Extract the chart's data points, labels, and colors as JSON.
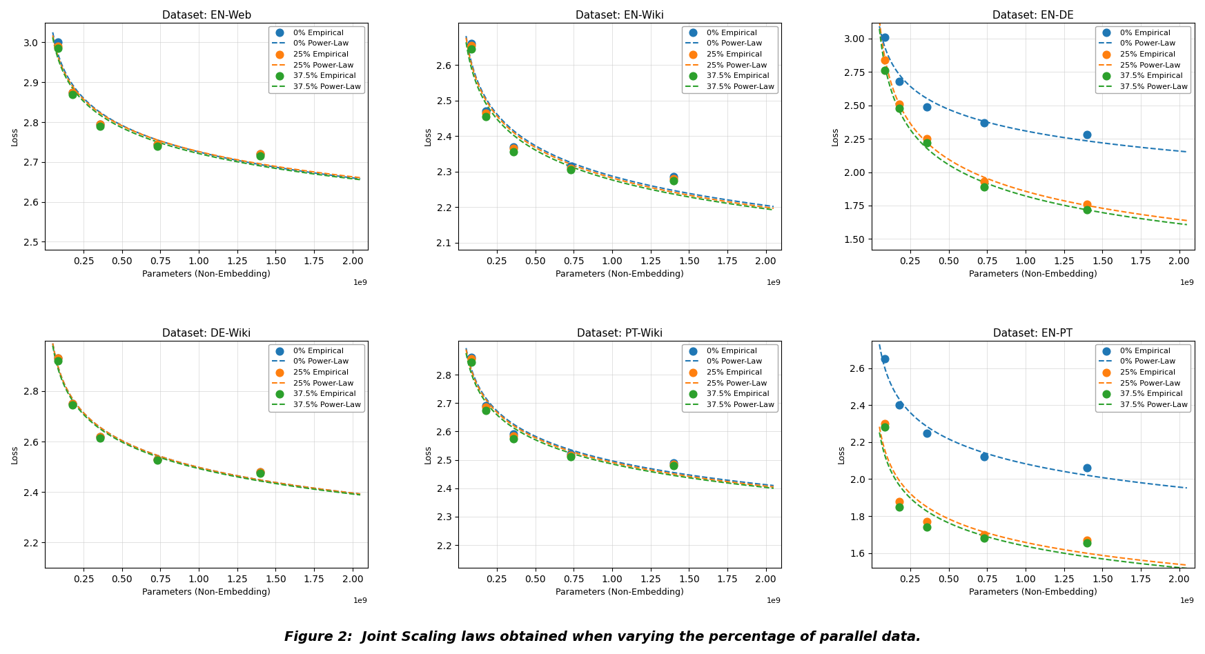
{
  "subplots": [
    {
      "title": "Dataset: EN-Web",
      "ylim": [
        2.48,
        3.05
      ],
      "yticks": [
        2.5,
        2.6,
        2.7,
        2.8,
        2.9,
        3.0
      ],
      "empirical": {
        "0%": {
          "x": [
            0.086,
            0.18,
            0.36,
            0.73,
            1.4
          ],
          "y": [
            3.0,
            2.875,
            2.795,
            2.745,
            2.72
          ]
        },
        "25%": {
          "x": [
            0.086,
            0.18,
            0.36,
            0.73,
            1.4
          ],
          "y": [
            2.99,
            2.875,
            2.795,
            2.745,
            2.72
          ]
        },
        "37.5%": {
          "x": [
            0.086,
            0.18,
            0.36,
            0.73,
            1.4
          ],
          "y": [
            2.985,
            2.87,
            2.79,
            2.74,
            2.715
          ]
        }
      }
    },
    {
      "title": "Dataset: EN-Wiki",
      "ylim": [
        2.08,
        2.72
      ],
      "yticks": [
        2.1,
        2.2,
        2.3,
        2.4,
        2.5,
        2.6
      ],
      "empirical": {
        "0%": {
          "x": [
            0.086,
            0.18,
            0.36,
            0.73,
            1.4
          ],
          "y": [
            2.66,
            2.47,
            2.37,
            2.315,
            2.285
          ]
        },
        "25%": {
          "x": [
            0.086,
            0.18,
            0.36,
            0.73,
            1.4
          ],
          "y": [
            2.655,
            2.465,
            2.365,
            2.31,
            2.28
          ]
        },
        "37.5%": {
          "x": [
            0.086,
            0.18,
            0.36,
            0.73,
            1.4
          ],
          "y": [
            2.645,
            2.455,
            2.355,
            2.305,
            2.275
          ]
        }
      }
    },
    {
      "title": "Dataset: EN-DE",
      "ylim": [
        1.42,
        3.12
      ],
      "yticks": [
        1.5,
        1.75,
        2.0,
        2.25,
        2.5,
        2.75,
        3.0
      ],
      "empirical": {
        "0%": {
          "x": [
            0.086,
            0.18,
            0.36,
            0.73,
            1.4
          ],
          "y": [
            3.01,
            2.68,
            2.49,
            2.37,
            2.28
          ]
        },
        "25%": {
          "x": [
            0.086,
            0.18,
            0.36,
            0.73,
            1.4
          ],
          "y": [
            2.84,
            2.51,
            2.25,
            1.93,
            1.76
          ]
        },
        "37.5%": {
          "x": [
            0.086,
            0.18,
            0.36,
            0.73,
            1.4
          ],
          "y": [
            2.76,
            2.48,
            2.22,
            1.89,
            1.72
          ]
        }
      }
    },
    {
      "title": "Dataset: DE-Wiki",
      "ylim": [
        2.1,
        3.0
      ],
      "yticks": [
        2.2,
        2.4,
        2.6,
        2.8
      ],
      "empirical": {
        "0%": {
          "x": [
            0.086,
            0.18,
            0.36,
            0.73,
            1.4
          ],
          "y": [
            2.93,
            2.75,
            2.62,
            2.53,
            2.48
          ]
        },
        "25%": {
          "x": [
            0.086,
            0.18,
            0.36,
            0.73,
            1.4
          ],
          "y": [
            2.93,
            2.75,
            2.62,
            2.53,
            2.48
          ]
        },
        "37.5%": {
          "x": [
            0.086,
            0.18,
            0.36,
            0.73,
            1.4
          ],
          "y": [
            2.92,
            2.745,
            2.615,
            2.525,
            2.475
          ]
        }
      }
    },
    {
      "title": "Dataset: PT-Wiki",
      "ylim": [
        2.12,
        2.92
      ],
      "yticks": [
        2.2,
        2.3,
        2.4,
        2.5,
        2.6,
        2.7,
        2.8
      ],
      "empirical": {
        "0%": {
          "x": [
            0.086,
            0.18,
            0.36,
            0.73,
            1.4
          ],
          "y": [
            2.86,
            2.69,
            2.59,
            2.52,
            2.49
          ]
        },
        "25%": {
          "x": [
            0.086,
            0.18,
            0.36,
            0.73,
            1.4
          ],
          "y": [
            2.855,
            2.685,
            2.585,
            2.515,
            2.485
          ]
        },
        "37.5%": {
          "x": [
            0.086,
            0.18,
            0.36,
            0.73,
            1.4
          ],
          "y": [
            2.845,
            2.675,
            2.575,
            2.51,
            2.48
          ]
        }
      }
    },
    {
      "title": "Dataset: EN-PT",
      "ylim": [
        1.52,
        2.75
      ],
      "yticks": [
        1.6,
        1.8,
        2.0,
        2.2,
        2.4,
        2.6
      ],
      "empirical": {
        "0%": {
          "x": [
            0.086,
            0.18,
            0.36,
            0.73,
            1.4
          ],
          "y": [
            2.65,
            2.4,
            2.25,
            2.12,
            2.06
          ]
        },
        "25%": {
          "x": [
            0.086,
            0.18,
            0.36,
            0.73,
            1.4
          ],
          "y": [
            2.3,
            1.88,
            1.77,
            1.7,
            1.67
          ]
        },
        "37.5%": {
          "x": [
            0.086,
            0.18,
            0.36,
            0.73,
            1.4
          ],
          "y": [
            2.28,
            1.85,
            1.74,
            1.68,
            1.655
          ]
        }
      }
    }
  ],
  "colors": {
    "0%": "#1f77b4",
    "25%": "#ff7f0e",
    "37.5%": "#2ca02c"
  },
  "xlabel": "Parameters (Non-Embedding)",
  "ylabel": "Loss",
  "xticks": [
    0.25,
    0.5,
    0.75,
    1.0,
    1.25,
    1.5,
    1.75,
    2.0
  ],
  "caption": "Figure 2:  Joint Scaling laws obtained when varying the percentage of parallel data.",
  "background_color": "#ffffff"
}
